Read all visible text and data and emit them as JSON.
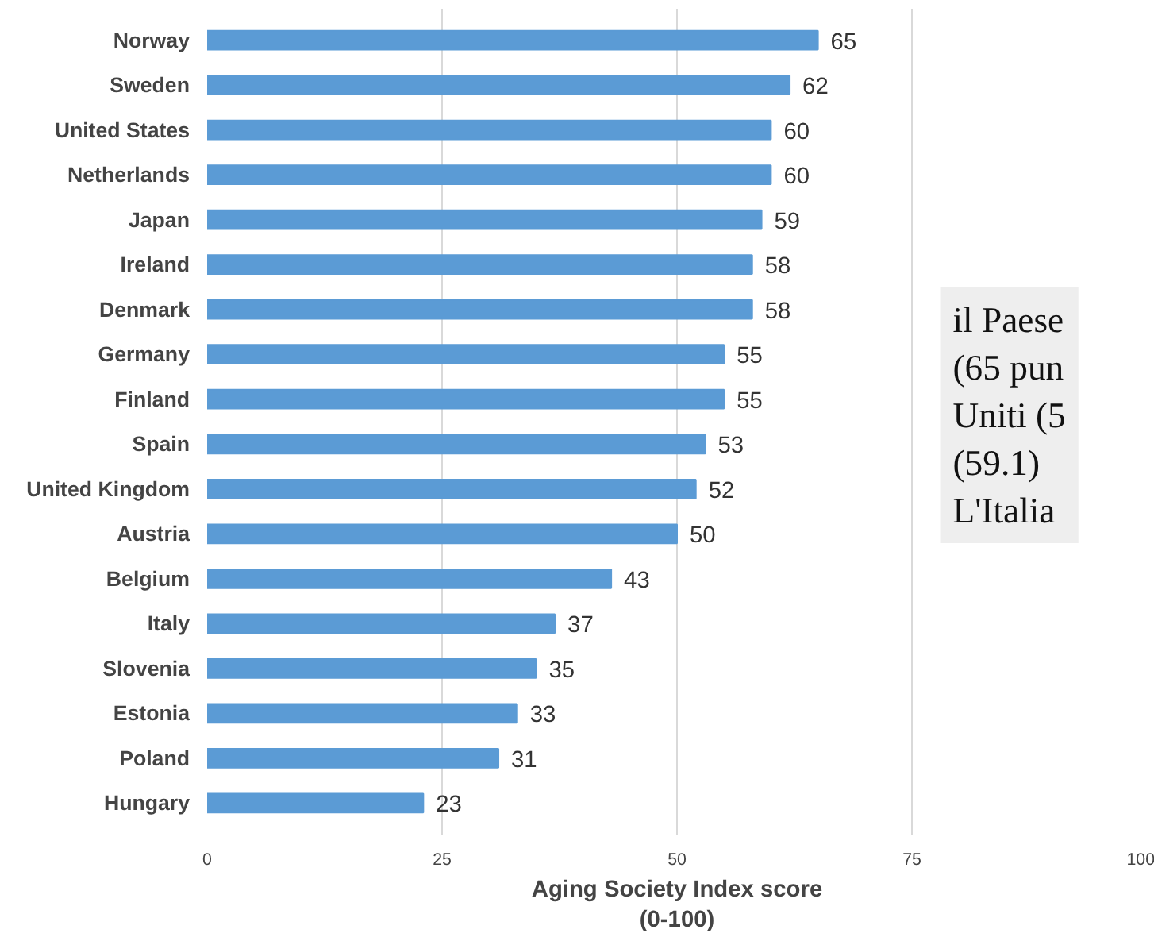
{
  "chart_data": {
    "type": "bar",
    "orientation": "horizontal",
    "xlabel": "Aging Society Index score\n(0-100)",
    "categories": [
      "Norway",
      "Sweden",
      "United States",
      "Netherlands",
      "Japan",
      "Ireland",
      "Denmark",
      "Germany",
      "Finland",
      "Spain",
      "United Kingdom",
      "Austria",
      "Belgium",
      "Italy",
      "Slovenia",
      "Estonia",
      "Poland",
      "Hungary"
    ],
    "values": [
      65,
      62,
      60,
      60,
      59,
      58,
      58,
      55,
      55,
      53,
      52,
      50,
      43,
      37,
      35,
      33,
      31,
      23
    ],
    "color": "#5b9bd5",
    "data_labels": true,
    "xlim": [
      0,
      100
    ],
    "xticks": [
      0,
      25,
      50,
      75,
      100
    ],
    "grid": "x",
    "annotations": [
      "il Paese\n(65 pun\nUniti (5\n(59.1)\nL'Italia"
    ]
  }
}
